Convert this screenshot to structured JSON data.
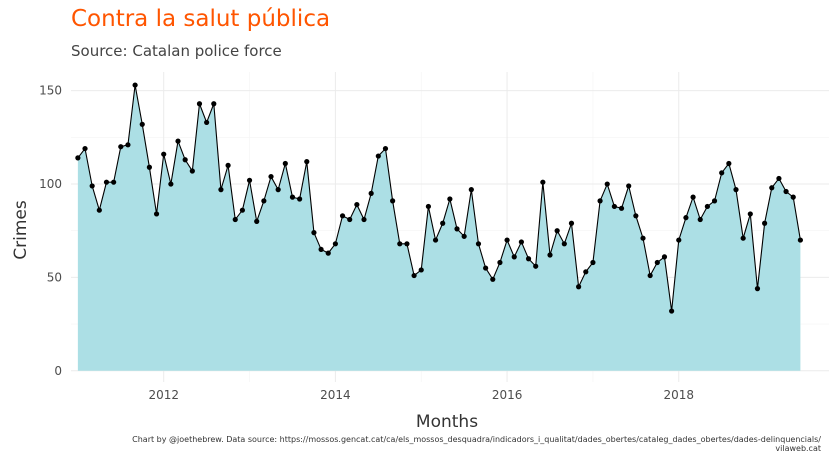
{
  "header": {
    "title": "Contra la salut pública",
    "subtitle": "Source: Catalan police force"
  },
  "caption": "Chart by @joethebrew. Data source: https://mossos.gencat.cat/ca/els_mossos_desquadra/indicadors_i_qualitat/dades_obertes/cataleg_dades_obertes/dades-delinquencials/ vilaweb.cat",
  "colors": {
    "title": "#ff5500",
    "area_fill": "#acdfe5",
    "line": "#000000",
    "grid": "#ebebeb"
  },
  "chart_data": {
    "type": "area",
    "title": "Contra la salut pública",
    "subtitle": "Source: Catalan police force",
    "xlabel": "Months",
    "ylabel": "Crimes",
    "x_start": "2011-01",
    "x_step": "1 month",
    "xlim": [
      2010.92,
      2019.75
    ],
    "ylim": [
      -6,
      160
    ],
    "xticks": [
      2012,
      2014,
      2016,
      2018
    ],
    "xtick_labels": [
      "2012",
      "2014",
      "2016",
      "2018"
    ],
    "yticks": [
      0,
      50,
      100,
      150
    ],
    "ytick_labels": [
      "0",
      "50",
      "100",
      "150"
    ],
    "grid": true,
    "values": [
      114,
      119,
      99,
      86,
      101,
      101,
      120,
      121,
      153,
      132,
      109,
      84,
      116,
      100,
      123,
      113,
      107,
      143,
      133,
      143,
      97,
      110,
      81,
      86,
      102,
      80,
      91,
      104,
      97,
      111,
      93,
      92,
      112,
      74,
      65,
      63,
      68,
      83,
      81,
      89,
      81,
      95,
      115,
      119,
      91,
      68,
      68,
      51,
      54,
      88,
      70,
      79,
      92,
      76,
      72,
      97,
      68,
      55,
      49,
      58,
      70,
      61,
      69,
      60,
      56,
      101,
      62,
      75,
      68,
      79,
      45,
      53,
      58,
      91,
      100,
      88,
      87,
      99,
      83,
      71,
      51,
      58,
      61,
      32,
      70,
      82,
      93,
      81,
      88,
      91,
      106,
      111,
      97,
      71,
      84,
      44,
      79,
      98,
      103,
      96,
      93,
      70
    ]
  }
}
